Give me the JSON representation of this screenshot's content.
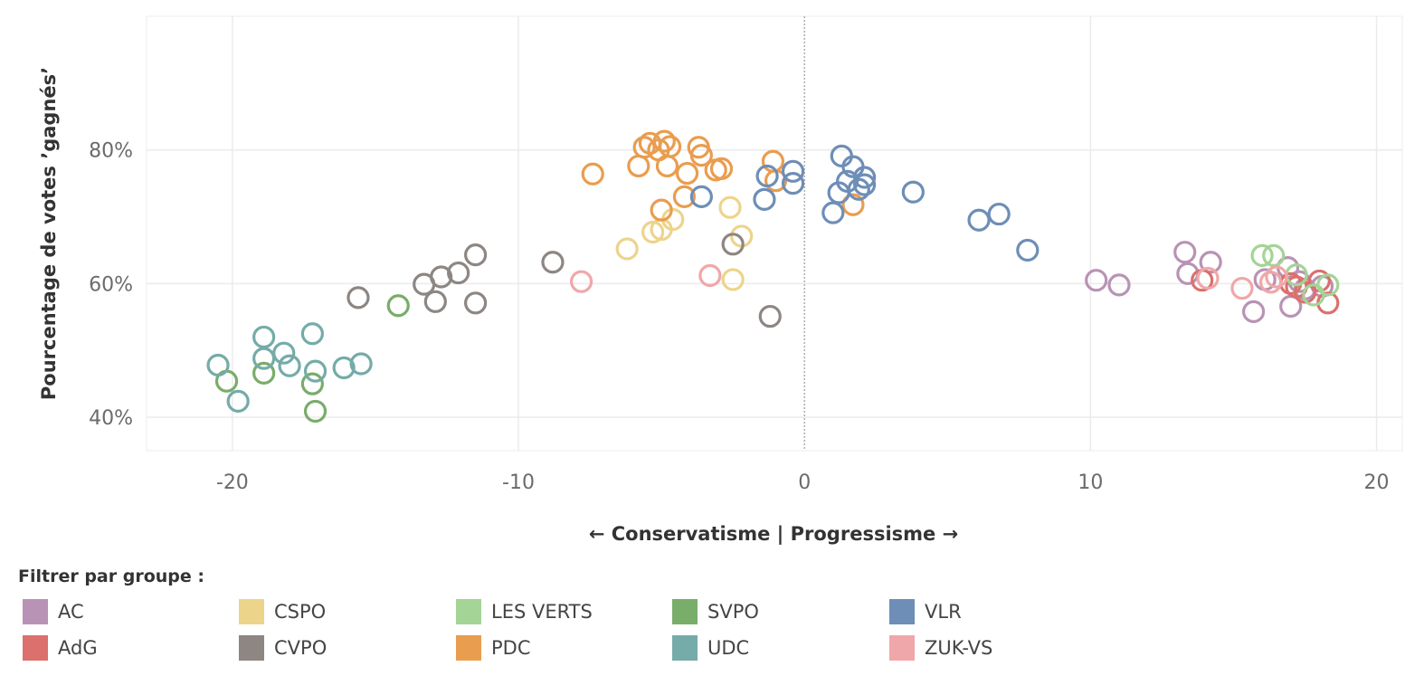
{
  "chart_data": {
    "type": "scatter",
    "xlabel": "← Conservatisme | Progressisme →",
    "ylabel": "Pourcentage de votes ’gagnés’",
    "xlim": [
      -23,
      20.9
    ],
    "ylim": [
      35,
      100
    ],
    "x_ticks": [
      -20,
      -10,
      0,
      10,
      20
    ],
    "x_tick_labels": [
      "-20",
      "-10",
      "0",
      "10",
      "20"
    ],
    "y_ticks": [
      40,
      60,
      80
    ],
    "y_tick_labels": [
      "40%",
      "60%",
      "80%"
    ],
    "zero_line": true,
    "marker": "hollow-circle",
    "series": [
      {
        "name": "AC",
        "color": "#b893b5",
        "points": [
          [
            10.2,
            60.5
          ],
          [
            11.0,
            59.8
          ],
          [
            13.3,
            64.7
          ],
          [
            13.4,
            61.5
          ],
          [
            14.2,
            63.2
          ],
          [
            15.7,
            55.8
          ],
          [
            16.1,
            60.6
          ],
          [
            16.9,
            62.4
          ],
          [
            17.0,
            56.6
          ],
          [
            17.3,
            60.3
          ],
          [
            17.5,
            59.2
          ],
          [
            18.1,
            59.6
          ]
        ]
      },
      {
        "name": "AdG",
        "color": "#db706c",
        "points": [
          [
            13.9,
            60.5
          ],
          [
            17.0,
            60.0
          ],
          [
            17.2,
            59.5
          ],
          [
            17.5,
            58.7
          ],
          [
            18.0,
            60.4
          ],
          [
            18.3,
            57.1
          ]
        ]
      },
      {
        "name": "CSPO",
        "color": "#edd48b",
        "points": [
          [
            -6.2,
            65.2
          ],
          [
            -5.3,
            67.7
          ],
          [
            -5.0,
            68.1
          ],
          [
            -4.6,
            69.6
          ],
          [
            -2.6,
            71.4
          ],
          [
            -2.2,
            67.1
          ],
          [
            -2.5,
            60.6
          ]
        ]
      },
      {
        "name": "CVPO",
        "color": "#8d8682",
        "points": [
          [
            -15.6,
            57.9
          ],
          [
            -13.3,
            59.9
          ],
          [
            -12.9,
            57.3
          ],
          [
            -12.7,
            61.0
          ],
          [
            -12.1,
            61.6
          ],
          [
            -11.5,
            64.3
          ],
          [
            -11.5,
            57.1
          ],
          [
            -8.8,
            63.2
          ],
          [
            -2.5,
            65.9
          ],
          [
            -1.2,
            55.1
          ]
        ]
      },
      {
        "name": "LES VERTS",
        "color": "#a4d496",
        "points": [
          [
            16.0,
            64.2
          ],
          [
            16.4,
            64.2
          ],
          [
            17.2,
            61.3
          ],
          [
            17.8,
            58.3
          ],
          [
            18.3,
            59.8
          ]
        ]
      },
      {
        "name": "PDC",
        "color": "#e99d4f",
        "points": [
          [
            -7.4,
            76.4
          ],
          [
            -5.8,
            77.6
          ],
          [
            -5.6,
            80.4
          ],
          [
            -5.4,
            81.0
          ],
          [
            -5.1,
            80.0
          ],
          [
            -4.9,
            81.3
          ],
          [
            -4.7,
            80.5
          ],
          [
            -4.8,
            77.6
          ],
          [
            -4.1,
            76.5
          ],
          [
            -4.2,
            73.0
          ],
          [
            -5.0,
            71.0
          ],
          [
            -3.7,
            80.4
          ],
          [
            -3.6,
            79.2
          ],
          [
            -3.1,
            77.0
          ],
          [
            -2.9,
            77.2
          ],
          [
            -1.1,
            78.3
          ],
          [
            -1.0,
            75.4
          ],
          [
            1.7,
            71.8
          ]
        ]
      },
      {
        "name": "SVPO",
        "color": "#79ad6a",
        "points": [
          [
            -20.2,
            45.4
          ],
          [
            -18.9,
            46.6
          ],
          [
            -17.2,
            45.0
          ],
          [
            -17.1,
            40.9
          ],
          [
            -14.2,
            56.7
          ]
        ]
      },
      {
        "name": "UDC",
        "color": "#75aba8",
        "points": [
          [
            -20.5,
            47.8
          ],
          [
            -19.8,
            42.4
          ],
          [
            -18.9,
            48.8
          ],
          [
            -18.9,
            52.0
          ],
          [
            -18.2,
            49.6
          ],
          [
            -18.0,
            47.7
          ],
          [
            -17.2,
            52.5
          ],
          [
            -17.1,
            46.9
          ],
          [
            -16.1,
            47.4
          ],
          [
            -15.5,
            48.0
          ]
        ]
      },
      {
        "name": "VLR",
        "color": "#6e8eb7",
        "points": [
          [
            -3.6,
            73.0
          ],
          [
            -1.3,
            76.1
          ],
          [
            -1.4,
            72.6
          ],
          [
            -0.4,
            76.8
          ],
          [
            -0.4,
            75.0
          ],
          [
            1.0,
            70.6
          ],
          [
            1.2,
            73.6
          ],
          [
            1.3,
            79.1
          ],
          [
            1.5,
            75.3
          ],
          [
            1.7,
            77.5
          ],
          [
            1.9,
            74.1
          ],
          [
            2.1,
            75.9
          ],
          [
            2.1,
            74.8
          ],
          [
            3.8,
            73.7
          ],
          [
            6.1,
            69.5
          ],
          [
            6.8,
            70.4
          ],
          [
            7.8,
            65.0
          ]
        ]
      },
      {
        "name": "ZUK-VS",
        "color": "#f0a7a9",
        "points": [
          [
            -7.8,
            60.3
          ],
          [
            -3.3,
            61.2
          ],
          [
            14.1,
            60.8
          ],
          [
            15.3,
            59.3
          ],
          [
            16.3,
            60.2
          ],
          [
            16.5,
            61.0
          ]
        ]
      }
    ]
  },
  "legend": {
    "title": "Filtrer par groupe :",
    "items": [
      {
        "label": "AC",
        "color": "#b893b5"
      },
      {
        "label": "AdG",
        "color": "#db706c"
      },
      {
        "label": "CSPO",
        "color": "#edd48b"
      },
      {
        "label": "CVPO",
        "color": "#8d8682"
      },
      {
        "label": "LES VERTS",
        "color": "#a4d496"
      },
      {
        "label": "PDC",
        "color": "#e99d4f"
      },
      {
        "label": "SVPO",
        "color": "#79ad6a"
      },
      {
        "label": "UDC",
        "color": "#75aba8"
      },
      {
        "label": "VLR",
        "color": "#6e8eb7"
      },
      {
        "label": "ZUK-VS",
        "color": "#f0a7a9"
      }
    ]
  }
}
